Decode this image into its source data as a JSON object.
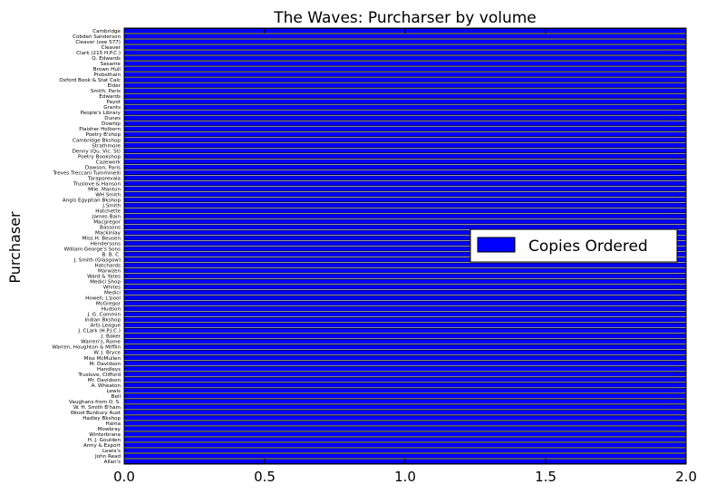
{
  "chart_data": {
    "type": "bar",
    "orientation": "horizontal",
    "title": "The Waves: Purcharser by volume",
    "xlabel": "",
    "ylabel": "Purchaser",
    "xlim": [
      0,
      2
    ],
    "x_ticks": [
      "0.0",
      "0.5",
      "1.0",
      "1.5",
      "2.0"
    ],
    "grid": false,
    "legend_position": "center-right",
    "categories": [
      "Allan's",
      "John Read",
      "Lewis's",
      "Army & Export",
      "H. J. Goulden",
      "Winterbrana",
      "Mowbray",
      "Hama",
      "Hadley Bkshop",
      "Wood Bunbury Aust",
      "W. H. Smith B'ham",
      "Vaughans from O. S.",
      "Bell",
      "Lewis",
      "A. Wheaton",
      "Mr. Davidson",
      "Truslove, Clifford",
      "Handleys",
      "M. Davidson",
      "Miss McMullen",
      "W. J. Bryce",
      "Warren, Houghton & Mifflin",
      "Warren's, Rome",
      "J. Baker",
      "J. CLark (H.P.J.C.)",
      "Arts League",
      "Indian Bkshop",
      "J. G. Commin",
      "Hudson",
      "McGregor",
      "Howell, L'pool",
      "Medici",
      "Whites",
      "Medici Shop",
      "Ward & Yates",
      "Marwzen",
      "Hatchards",
      "J. Smith (Glasgow)",
      "B. B. C.",
      "William George's Sons",
      "Hendersons",
      "Miss H. Beusen",
      "Mackinlay",
      "Bassons",
      "Macgregor",
      "James Bain",
      "Hatchette",
      "J.Smith",
      "Angis Egyptian Bkshop",
      "WH Smith",
      "Mlle. Manton",
      "Truslove & Hanson",
      "Taraporevala",
      "Treves Treccani Tumminelli",
      "Dawson, Paris",
      "Cazework",
      "Poetry Bookshop",
      "Denny (Qu. Vic. St)",
      "Strathmore",
      "Cambridge Bkshop",
      "Poetry B'shop",
      "Plaisher Holborn",
      "Dowhip",
      "Dunes",
      "People's Library",
      "Grants",
      "Payot",
      "Edwards",
      "Smith, Paris",
      "Elder",
      "Oxford Book & Stat Calc",
      "Probsthain",
      "Brown Hull",
      "Sesame",
      "Q. Edwards",
      "Clark (215 H.P.C.)",
      "Cleaver",
      "Cleaver (see 577)",
      "Cobden Sanderson",
      "Cambridge"
    ],
    "series": [
      {
        "name": "Copies Ordered",
        "color": "#0000ff",
        "values": [
          2,
          2,
          2,
          2,
          2,
          2,
          2,
          2,
          2,
          2,
          2,
          2,
          2,
          2,
          2,
          2,
          2,
          2,
          2,
          2,
          2,
          2,
          2,
          2,
          2,
          2,
          2,
          2,
          2,
          2,
          2,
          2,
          2,
          2,
          2,
          2,
          2,
          2,
          2,
          2,
          2,
          2,
          2,
          2,
          2,
          2,
          2,
          2,
          2,
          2,
          2,
          2,
          2,
          2,
          2,
          2,
          2,
          2,
          2,
          2,
          2,
          2,
          2,
          2,
          2,
          2,
          2,
          2,
          2,
          2,
          2,
          2,
          2,
          2,
          2,
          2,
          2,
          2,
          2,
          2
        ]
      }
    ]
  }
}
